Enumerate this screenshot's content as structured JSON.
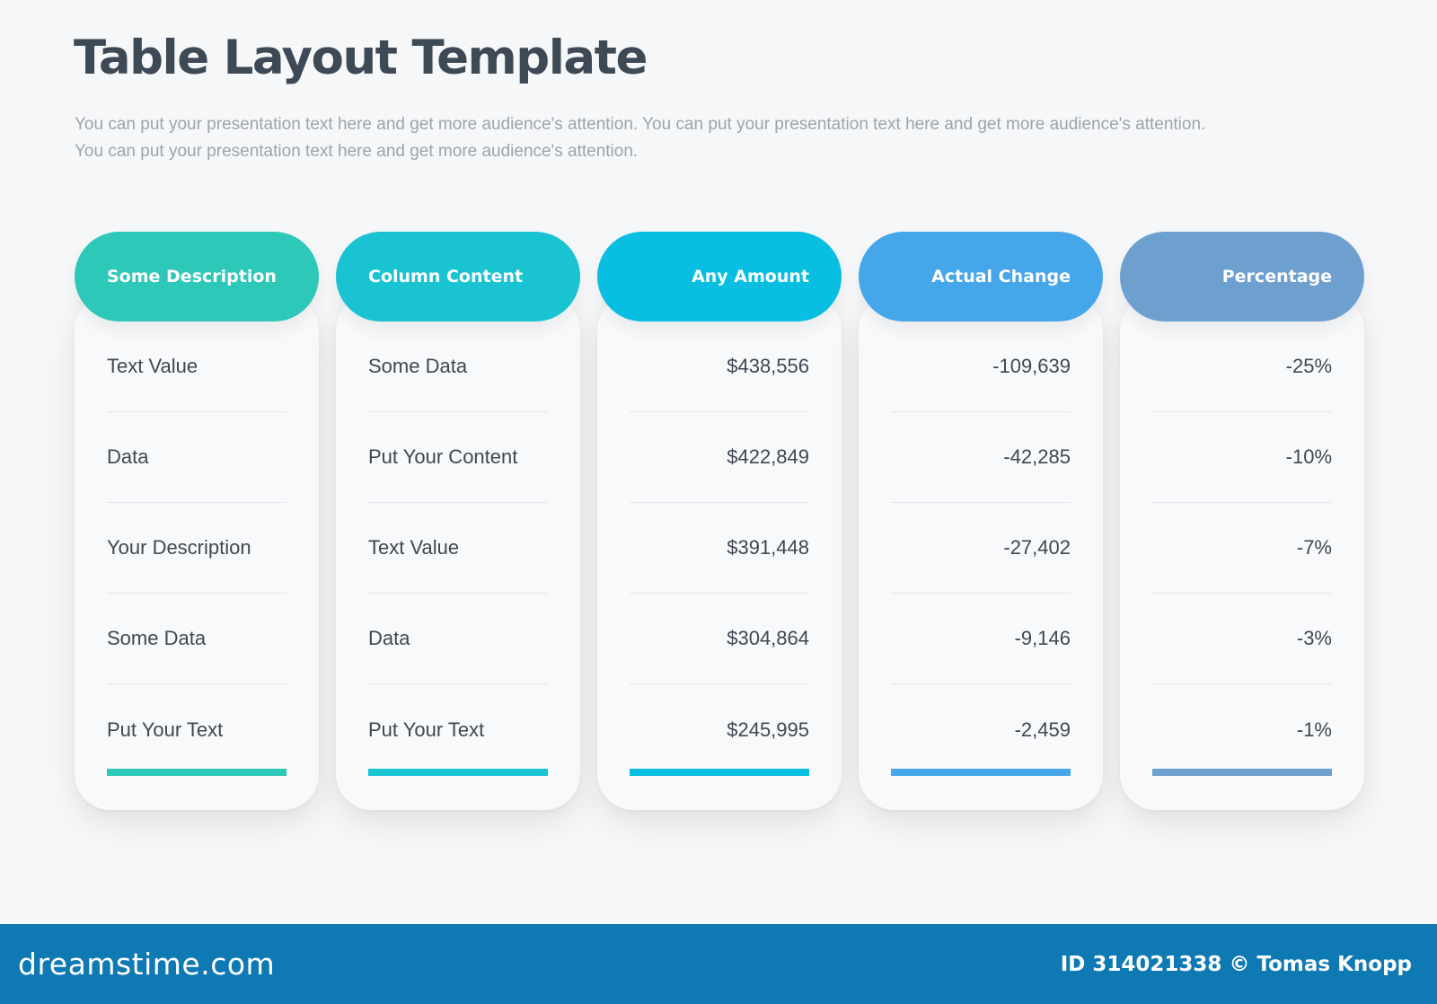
{
  "title": "Table Layout Template",
  "subtitle": "You can put your presentation text here and get more audience's attention. You can put your presentation text here and get more audience's attention. You can put your presentation text here and get more audience's attention.",
  "colors": {
    "col1": "#2ec8b8",
    "col2": "#19c3d2",
    "col3": "#08bfe2",
    "col4": "#46a6ea",
    "col5": "#6ea0cf",
    "footer": "#0f79b4"
  },
  "columns": [
    {
      "header": "Some Description",
      "rows": [
        "Text Value",
        "Data",
        "Your Description",
        "Some Data",
        "Put Your Text"
      ]
    },
    {
      "header": "Column Content",
      "rows": [
        "Some Data",
        "Put Your Content",
        "Text Value",
        "Data",
        "Put Your Text"
      ]
    },
    {
      "header": "Any Amount",
      "rows": [
        "$438,556",
        "$422,849",
        "$391,448",
        "$304,864",
        "$245,995"
      ]
    },
    {
      "header": "Actual Change",
      "rows": [
        "-109,639",
        "-42,285",
        "-27,402",
        "-9,146",
        "-2,459"
      ]
    },
    {
      "header": "Percentage",
      "rows": [
        "-25%",
        "-10%",
        "-7%",
        "-3%",
        "-1%"
      ]
    }
  ],
  "footer": {
    "brand": "dreamstime.com",
    "credit": "ID 314021338 © Tomas Knopp"
  }
}
